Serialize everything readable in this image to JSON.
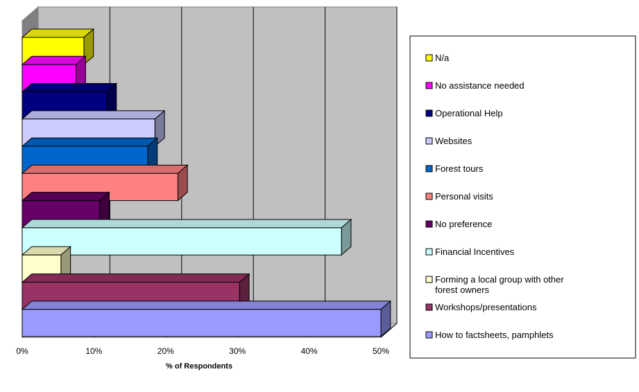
{
  "chart_data": {
    "type": "bar",
    "orientation": "horizontal",
    "three_d": true,
    "xlabel": "% of Respondents",
    "ylabel": "",
    "xlim": [
      0,
      50
    ],
    "x_ticks": [
      "0%",
      "10%",
      "20%",
      "30%",
      "40%",
      "50%"
    ],
    "grid": true,
    "legend_position": "right",
    "series": [
      {
        "name": "N/a",
        "value": 8.6,
        "color": "#ffff00"
      },
      {
        "name": "No assistance needed",
        "value": 7.5,
        "color": "#ff00ff"
      },
      {
        "name": "Operational Help",
        "value": 11.8,
        "color": "#000080"
      },
      {
        "name": "Websites",
        "value": 18.5,
        "color": "#ccccff"
      },
      {
        "name": "Forest tours",
        "value": 17.5,
        "color": "#0066cc"
      },
      {
        "name": "Personal visits",
        "value": 21.7,
        "color": "#ff8080"
      },
      {
        "name": "No preference",
        "value": 10.8,
        "color": "#660066"
      },
      {
        "name": "Financial Incentives",
        "value": 44.5,
        "color": "#ccffff"
      },
      {
        "name": "Forming a local group with other forest owners",
        "value": 5.4,
        "color": "#ffffcc"
      },
      {
        "name": "Workshops/presentations",
        "value": 30.3,
        "color": "#993366"
      },
      {
        "name": "How to factsheets, pamphlets",
        "value": 50.0,
        "color": "#9999ff"
      }
    ]
  }
}
